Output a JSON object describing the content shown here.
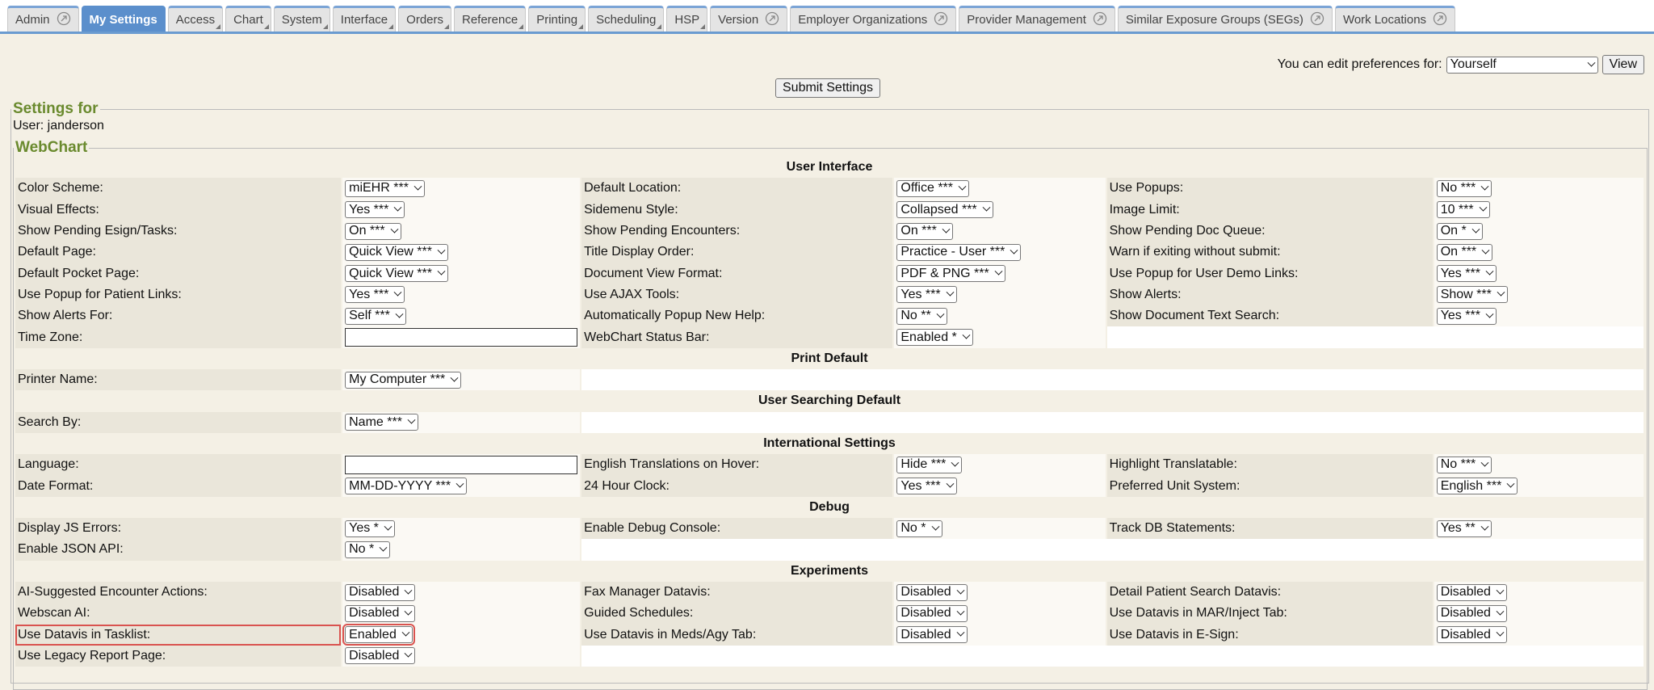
{
  "tabs": [
    {
      "label": "Admin",
      "external": true
    },
    {
      "label": "My Settings",
      "active": true
    },
    {
      "label": "Access"
    },
    {
      "label": "Chart"
    },
    {
      "label": "System"
    },
    {
      "label": "Interface"
    },
    {
      "label": "Orders"
    },
    {
      "label": "Reference"
    },
    {
      "label": "Printing"
    },
    {
      "label": "Scheduling"
    },
    {
      "label": "HSP"
    },
    {
      "label": "Version",
      "external": true
    },
    {
      "label": "Employer Organizations",
      "external": true
    },
    {
      "label": "Provider Management",
      "external": true
    },
    {
      "label": "Similar Exposure Groups (SEGs)",
      "external": true
    },
    {
      "label": "Work Locations",
      "external": true
    }
  ],
  "header": {
    "pref_label": "You can edit preferences for:",
    "pref_value": "Yourself",
    "view_button": "View",
    "submit_button": "Submit Settings"
  },
  "settings": {
    "legend": "Settings for",
    "user": "User: janderson",
    "group_legend": "WebChart"
  },
  "sections": [
    {
      "title": "User Interface",
      "rows": [
        [
          {
            "label": "Color Scheme:",
            "value": "miEHR ***"
          },
          {
            "label": "Default Location:",
            "value": "Office ***"
          },
          {
            "label": "Use Popups:",
            "value": "No ***"
          }
        ],
        [
          {
            "label": "Visual Effects:",
            "value": "Yes ***"
          },
          {
            "label": "Sidemenu Style:",
            "value": "Collapsed ***"
          },
          {
            "label": "Image Limit:",
            "value": "10 ***"
          }
        ],
        [
          {
            "label": "Show Pending Esign/Tasks:",
            "value": "On ***"
          },
          {
            "label": "Show Pending Encounters:",
            "value": "On ***"
          },
          {
            "label": "Show Pending Doc Queue:",
            "value": "On *"
          }
        ],
        [
          {
            "label": "Default Page:",
            "value": "Quick View ***"
          },
          {
            "label": "Title Display Order:",
            "value": "Practice - User ***"
          },
          {
            "label": "Warn if exiting without submit:",
            "value": "On ***"
          }
        ],
        [
          {
            "label": "Default Pocket Page:",
            "value": "Quick View ***"
          },
          {
            "label": "Document View Format:",
            "value": "PDF & PNG ***"
          },
          {
            "label": "Use Popup for User Demo Links:",
            "value": "Yes ***"
          }
        ],
        [
          {
            "label": "Use Popup for Patient Links:",
            "value": "Yes ***"
          },
          {
            "label": "Use AJAX Tools:",
            "value": "Yes ***"
          },
          {
            "label": "Show Alerts:",
            "value": "Show ***"
          }
        ],
        [
          {
            "label": "Show Alerts For:",
            "value": "Self ***"
          },
          {
            "label": "Automatically Popup New Help:",
            "value": "No **"
          },
          {
            "label": "Show Document Text Search:",
            "value": "Yes ***"
          }
        ],
        [
          {
            "label": "Time Zone:"
          },
          {
            "label": "WebChart Status Bar:",
            "value": "Enabled *"
          }
        ]
      ]
    },
    {
      "title": "Print Default",
      "rows": [
        [
          {
            "label": "Printer Name:",
            "value": "My Computer ***"
          }
        ]
      ]
    },
    {
      "title": "User Searching Default",
      "rows": [
        [
          {
            "label": "Search By:",
            "value": "Name ***"
          }
        ]
      ]
    },
    {
      "title": "International Settings",
      "rows": [
        [
          {
            "label": "Language:"
          },
          {
            "label": "English Translations on Hover:",
            "value": "Hide ***"
          },
          {
            "label": "Highlight Translatable:",
            "value": "No ***"
          }
        ],
        [
          {
            "label": "Date Format:",
            "value": "MM-DD-YYYY ***"
          },
          {
            "label": "24 Hour Clock:",
            "value": "Yes ***"
          },
          {
            "label": "Preferred Unit System:",
            "value": "English ***"
          }
        ]
      ]
    },
    {
      "title": "Debug",
      "rows": [
        [
          {
            "label": "Display JS Errors:",
            "value": "Yes *"
          },
          {
            "label": "Enable Debug Console:",
            "value": "No *"
          },
          {
            "label": "Track DB Statements:",
            "value": "Yes **"
          }
        ],
        [
          {
            "label": "Enable JSON API:",
            "value": "No *"
          }
        ]
      ]
    },
    {
      "title": "Experiments",
      "rows": [
        [
          {
            "label": "AI-Suggested Encounter Actions:",
            "value": "Disabled"
          },
          {
            "label": "Fax Manager Datavis:",
            "value": "Disabled"
          },
          {
            "label": "Detail Patient Search Datavis:",
            "value": "Disabled"
          }
        ],
        [
          {
            "label": "Webscan AI:",
            "value": "Disabled"
          },
          {
            "label": "Guided Schedules:",
            "value": "Disabled"
          },
          {
            "label": "Use Datavis in MAR/Inject Tab:",
            "value": "Disabled"
          }
        ],
        [
          {
            "label": "Use Datavis in Tasklist:",
            "value": "Enabled",
            "highlighted": true
          },
          {
            "label": "Use Datavis in Meds/Agy Tab:",
            "value": "Disabled"
          },
          {
            "label": "Use Datavis in E-Sign:",
            "value": "Disabled"
          }
        ],
        [
          {
            "label": "Use Legacy Report Page:",
            "value": "Disabled"
          }
        ]
      ]
    }
  ]
}
